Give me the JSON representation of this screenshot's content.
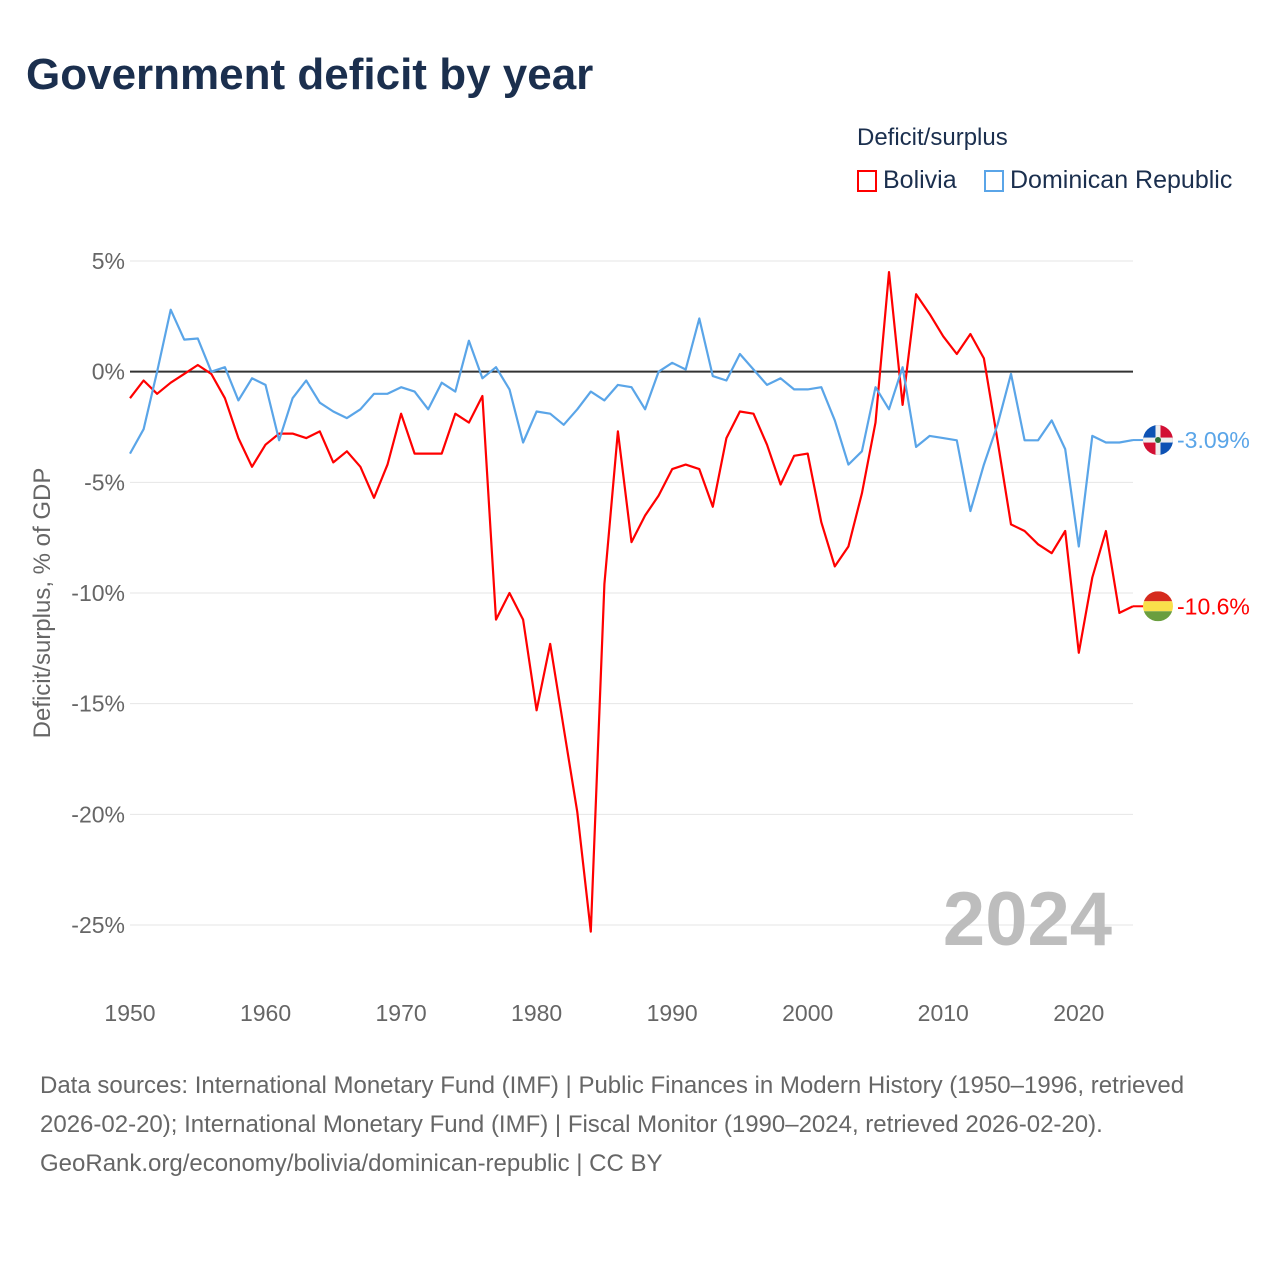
{
  "title": "Government deficit by year",
  "legend": {
    "title": "Deficit/surplus",
    "items": [
      {
        "label": "Bolivia",
        "color": "#ff0000"
      },
      {
        "label": "Dominican Republic",
        "color": "#5aa5e8"
      }
    ]
  },
  "year_label": "2024",
  "footer": {
    "sources": "Data sources: International Monetary Fund (IMF) | Public Finances in Modern History (1950–1996, retrieved 2026-02-20); International Monetary Fund (IMF) | Fiscal Monitor (1990–2024, retrieved 2026-02-20).",
    "credit": "GeoRank.org/economy/bolivia/dominican-republic | CC BY"
  },
  "chart_data": {
    "type": "line",
    "title": "Government deficit by year",
    "xlabel": "",
    "ylabel": "Deficit/surplus, % of GDP",
    "xlim": [
      1950,
      2024
    ],
    "ylim": [
      -25,
      5
    ],
    "x_ticks": [
      1950,
      1960,
      1970,
      1980,
      1990,
      2000,
      2010,
      2020
    ],
    "y_ticks": [
      5,
      0,
      -5,
      -10,
      -15,
      -20,
      -25
    ],
    "y_tick_labels": [
      "5%",
      "0%",
      "-5%",
      "-10%",
      "-15%",
      "-20%",
      "-25%"
    ],
    "x_tick_labels": [
      "1950",
      "1960",
      "1970",
      "1980",
      "1990",
      "2000",
      "2010",
      "2020"
    ],
    "grid": true,
    "legend_position": "top-right",
    "x": [
      1950,
      1951,
      1952,
      1953,
      1954,
      1955,
      1956,
      1957,
      1958,
      1959,
      1960,
      1961,
      1962,
      1963,
      1964,
      1965,
      1966,
      1967,
      1968,
      1969,
      1970,
      1971,
      1972,
      1973,
      1974,
      1975,
      1976,
      1977,
      1978,
      1979,
      1980,
      1981,
      1982,
      1983,
      1984,
      1985,
      1986,
      1987,
      1988,
      1989,
      1990,
      1991,
      1992,
      1993,
      1994,
      1995,
      1996,
      1997,
      1998,
      1999,
      2000,
      2001,
      2002,
      2003,
      2004,
      2005,
      2006,
      2007,
      2008,
      2009,
      2010,
      2011,
      2012,
      2013,
      2014,
      2015,
      2016,
      2017,
      2018,
      2019,
      2020,
      2021,
      2022,
      2023,
      2024
    ],
    "series": [
      {
        "name": "Bolivia",
        "color": "#ff0000",
        "end_label": "-10.6%",
        "values": [
          -1.2,
          -0.4,
          -1.0,
          -0.5,
          -0.1,
          0.3,
          -0.1,
          -1.2,
          -3.0,
          -4.3,
          -3.3,
          -2.8,
          -2.8,
          -3.0,
          -2.7,
          -4.1,
          -3.6,
          -4.3,
          -5.7,
          -4.2,
          -1.9,
          -3.7,
          -3.7,
          -3.7,
          -1.9,
          -2.3,
          -1.1,
          -11.2,
          -10.0,
          -11.2,
          -15.3,
          -12.3,
          -16.1,
          -19.9,
          -25.3,
          -9.6,
          -2.7,
          -7.7,
          -6.5,
          -5.6,
          -4.4,
          -4.2,
          -4.4,
          -6.1,
          -3.0,
          -1.8,
          -1.9,
          -3.3,
          -5.1,
          -3.8,
          -3.7,
          -6.8,
          -8.8,
          -7.9,
          -5.5,
          -2.3,
          4.5,
          -1.5,
          3.5,
          2.6,
          1.6,
          0.8,
          1.7,
          0.6,
          -3.1,
          -6.9,
          -7.2,
          -7.8,
          -8.2,
          -7.2,
          -12.7,
          -9.3,
          -7.2,
          -10.9,
          -10.6
        ]
      },
      {
        "name": "Dominican Republic",
        "color": "#5aa5e8",
        "end_label": "-3.09%",
        "values": [
          -3.7,
          -2.6,
          0.0,
          2.8,
          1.45,
          1.5,
          0.0,
          0.2,
          -1.3,
          -0.3,
          -0.6,
          -3.1,
          -1.2,
          -0.4,
          -1.4,
          -1.8,
          -2.1,
          -1.7,
          -1.0,
          -1.0,
          -0.7,
          -0.9,
          -1.7,
          -0.5,
          -0.9,
          1.4,
          -0.3,
          0.2,
          -0.8,
          -3.2,
          -1.8,
          -1.9,
          -2.4,
          -1.7,
          -0.9,
          -1.3,
          -0.6,
          -0.7,
          -1.7,
          0.0,
          0.4,
          0.1,
          2.4,
          -0.2,
          -0.4,
          0.8,
          0.1,
          -0.6,
          -0.3,
          -0.8,
          -0.8,
          -0.7,
          -2.2,
          -4.2,
          -3.6,
          -0.7,
          -1.7,
          0.2,
          -3.4,
          -2.9,
          -3.0,
          -3.1,
          -6.3,
          -4.2,
          -2.4,
          -0.1,
          -3.1,
          -3.1,
          -2.2,
          -3.5,
          -7.9,
          -2.9,
          -3.2,
          -3.2,
          -3.09
        ]
      }
    ]
  }
}
